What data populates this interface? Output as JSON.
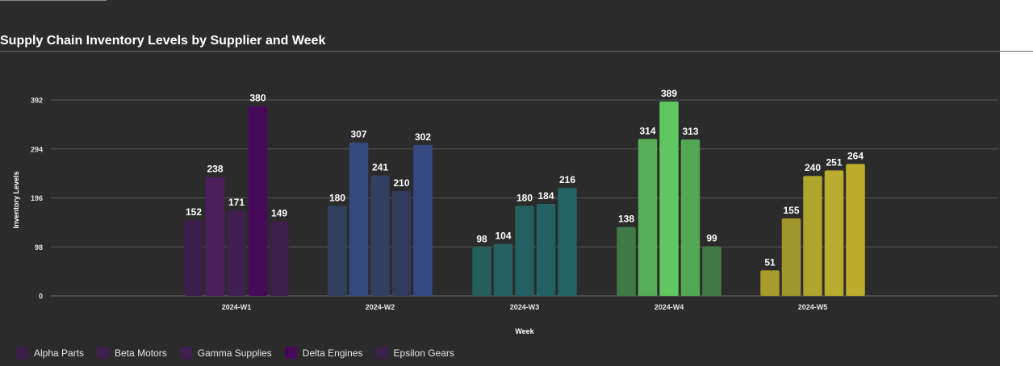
{
  "chart_data": {
    "type": "bar",
    "title": "Supply Chain Inventory Levels by Supplier and Week",
    "xlabel": "Week",
    "ylabel": "Inventory Levels",
    "categories": [
      "2024-W1",
      "2024-W2",
      "2024-W3",
      "2024-W4",
      "2024-W5"
    ],
    "yticks": [
      0,
      98,
      196,
      294,
      392
    ],
    "ylim": [
      0,
      392
    ],
    "grid": true,
    "legend_position": "bottom-left",
    "series": [
      {
        "name": "Alpha Parts",
        "values": [
          152,
          180,
          98,
          138,
          51
        ]
      },
      {
        "name": "Beta Motors",
        "values": [
          238,
          307,
          104,
          314,
          155
        ]
      },
      {
        "name": "Gamma Supplies",
        "values": [
          171,
          241,
          180,
          389,
          240
        ]
      },
      {
        "name": "Delta Engines",
        "values": [
          380,
          210,
          184,
          313,
          251
        ]
      },
      {
        "name": "Epsilon Gears",
        "values": [
          149,
          302,
          216,
          99,
          264
        ]
      }
    ],
    "bar_colors": [
      [
        "#3b1f4a",
        "#4a1f5c",
        "#3e1f4f",
        "#470a5a",
        "#3d1f4b"
      ],
      [
        "#32405f",
        "#34497e",
        "#323f60",
        "#313a5c",
        "#354a82"
      ],
      [
        "#245f5c",
        "#246160",
        "#236160",
        "#236262",
        "#236363"
      ],
      [
        "#3f7a45",
        "#56af56",
        "#5fc75f",
        "#53a853",
        "#417a46"
      ],
      [
        "#a79c2a",
        "#a0962b",
        "#b0a52c",
        "#b8ad2e",
        "#bcae2c"
      ]
    ],
    "legend_colors": [
      "#3b1f4a",
      "#3e1f4f",
      "#3e1f4f",
      "#470a5a",
      "#3d1f4b"
    ]
  }
}
